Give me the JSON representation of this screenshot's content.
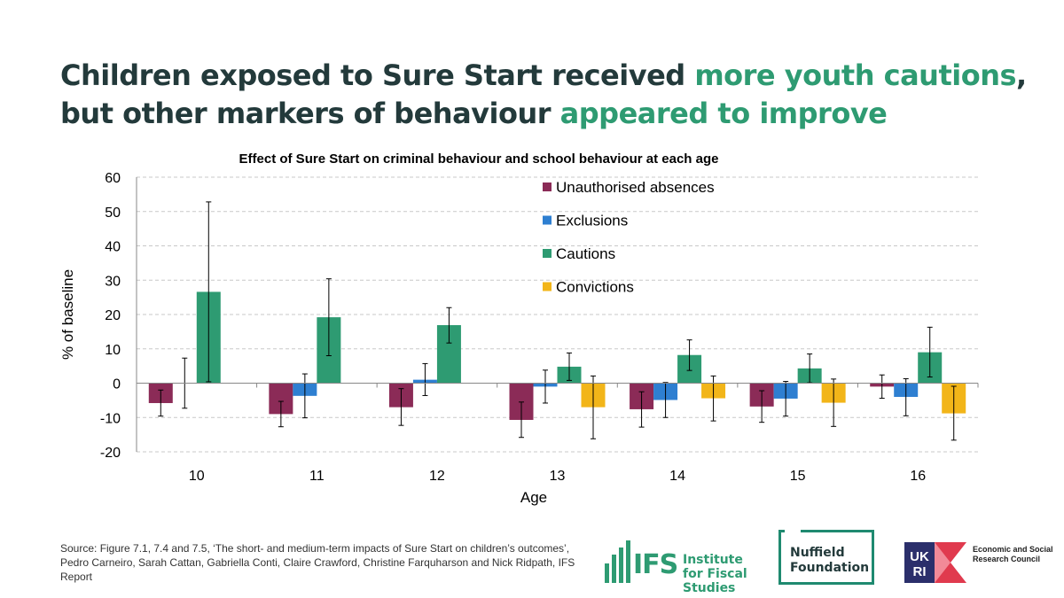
{
  "headline": {
    "part1": "Children exposed to Sure Start received ",
    "part2": "more youth cautions",
    "part3": ", but other markers of behaviour ",
    "part4": "appeared to improve"
  },
  "colors": {
    "accent": "#2e9b72",
    "headline": "#233a3b",
    "series": [
      "#8b2b57",
      "#2e7fd1",
      "#2e9b72",
      "#f2b519"
    ]
  },
  "chart_data": {
    "type": "bar",
    "title": "Effect of Sure Start on criminal behaviour and school behaviour at each age",
    "xlabel": "Age",
    "ylabel": "% of baseline",
    "ylim": [
      -20,
      60
    ],
    "yticks": [
      -20,
      -10,
      0,
      10,
      20,
      30,
      40,
      50,
      60
    ],
    "grid": true,
    "legend_position": "top-right",
    "categories": [
      "10",
      "11",
      "12",
      "13",
      "14",
      "15",
      "16"
    ],
    "series": [
      {
        "name": "Unauthorised absences",
        "values": [
          -5.8,
          -9.0,
          -7.0,
          -10.7,
          -7.6,
          -6.8,
          -1.0
        ],
        "err_low": [
          -9.6,
          -12.7,
          -12.3,
          -15.8,
          -12.8,
          -11.4,
          -4.4
        ],
        "err_high": [
          -2.0,
          -5.3,
          -1.6,
          -5.5,
          -2.5,
          -2.2,
          2.4
        ]
      },
      {
        "name": "Exclusions",
        "values": [
          0,
          -3.7,
          1.0,
          -1.0,
          -4.9,
          -4.5,
          -4.0
        ],
        "err_low": [
          -7.3,
          -10.1,
          -3.6,
          -5.8,
          -10.0,
          -9.6,
          -9.5
        ],
        "err_high": [
          7.3,
          2.7,
          5.7,
          3.8,
          0.2,
          0.5,
          1.3
        ]
      },
      {
        "name": "Cautions",
        "values": [
          26.6,
          19.2,
          16.9,
          4.8,
          8.2,
          4.3,
          9.0
        ],
        "err_low": [
          0.4,
          8.0,
          11.7,
          0.8,
          3.7,
          0.1,
          1.8
        ],
        "err_high": [
          52.8,
          30.4,
          22.0,
          8.8,
          12.6,
          8.5,
          16.3
        ]
      },
      {
        "name": "Convictions",
        "values": [
          0,
          0,
          0,
          -7.0,
          -4.4,
          -5.7,
          -8.8
        ],
        "err_low": [
          null,
          null,
          null,
          -16.2,
          -11.0,
          -12.6,
          -16.6
        ],
        "err_high": [
          null,
          null,
          null,
          2.1,
          2.1,
          1.2,
          -0.9
        ]
      }
    ]
  },
  "footer": {
    "source": "Source: Figure 7.1, 7.4 and 7.5, ‘The short- and medium-term impacts of Sure Start on children’s outcomes’, Pedro Carneiro, Sarah Cattan, Gabriella Conti, Claire Crawford, Christine Farquharson and Nick Ridpath, IFS Report",
    "ifs_mark": "IFS",
    "ifs_name": "Institute for Fiscal Studies",
    "nuffield_name": "Nuffield Foundation",
    "ukri_mark": "UKRI",
    "ukri_name": "Economic and Social Research Council"
  }
}
